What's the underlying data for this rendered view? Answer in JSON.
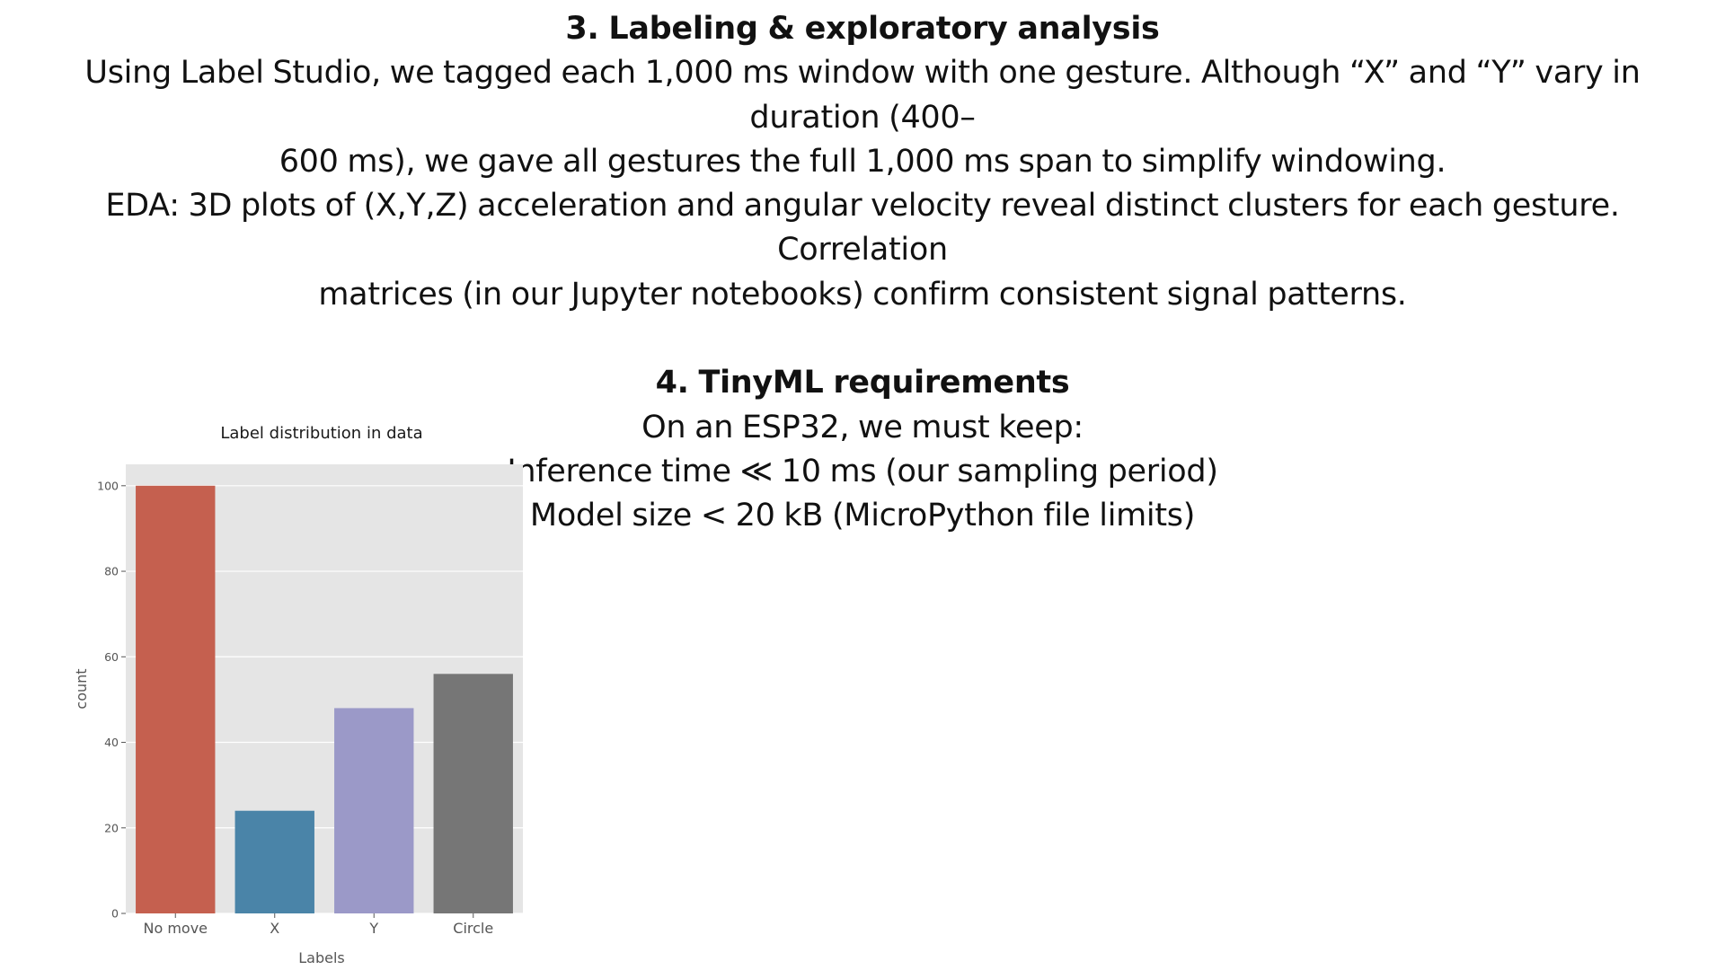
{
  "slide": {
    "section3": {
      "heading": "3. Labeling & exploratory analysis",
      "lines": [
        "Using Label Studio, we tagged each 1,000 ms window with one gesture. Although “X” and “Y” vary in duration (400–",
        "600 ms), we gave all gestures the full 1,000 ms span to simplify windowing.",
        "EDA: 3D plots of (X,Y,Z) acceleration and angular velocity reveal distinct clusters for each gesture. Correlation",
        "matrices (in our Jupyter notebooks) confirm consistent signal patterns."
      ]
    },
    "section4": {
      "heading": "4. TinyML requirements",
      "lines": [
        "On an ESP32, we must keep:",
        "Inference time ≪ 10 ms (our sampling period)",
        "Model size < 20 kB (MicroPython file limits)"
      ]
    }
  },
  "chart_data": {
    "type": "bar",
    "title": "Label distribution in data",
    "xlabel": "Labels",
    "ylabel": "count",
    "categories": [
      "No move",
      "X",
      "Y",
      "Circle"
    ],
    "values": [
      100,
      24,
      48,
      56
    ],
    "colors": [
      "#c5604f",
      "#4a84a8",
      "#9b99c8",
      "#767676"
    ],
    "ylim": [
      0,
      105
    ],
    "yticks": [
      0,
      20,
      40,
      60,
      80,
      100
    ],
    "grid": true,
    "background": "#e5e5e5",
    "grid_color": "#ffffff"
  }
}
